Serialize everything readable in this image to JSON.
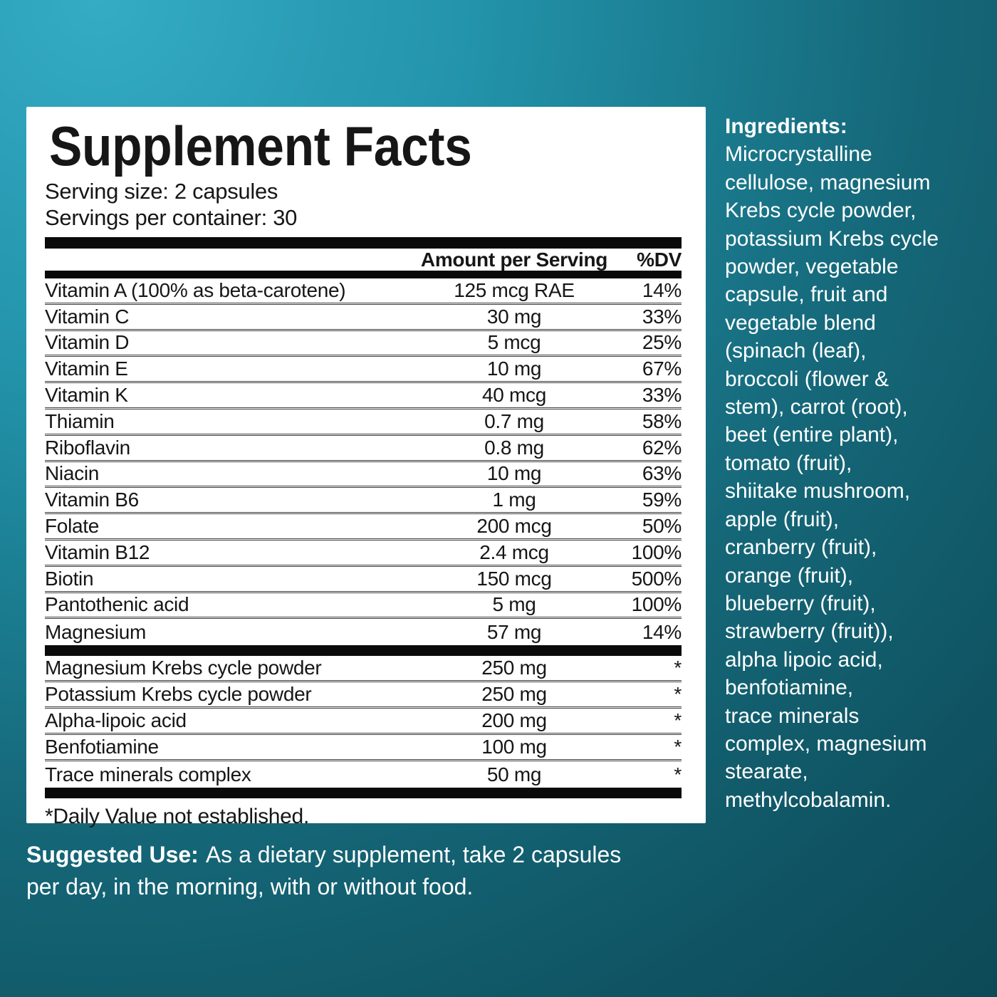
{
  "background": {
    "color_bright": "#35abc4",
    "color_dark": "#0d4956",
    "panel_color": "#ffffff",
    "text_on_teal": "#ffffff",
    "text_on_panel": "#161616"
  },
  "panel": {
    "title": "Supplement Facts",
    "serving_size": "Serving size: 2 capsules",
    "servings_per_container": "Servings per container: 30",
    "columns": {
      "amount": "Amount per Serving",
      "dv": "%DV"
    },
    "rows_primary": [
      {
        "name": "Vitamin A (100% as beta-carotene)",
        "amount": "125 mcg RAE",
        "dv": "14%"
      },
      {
        "name": "Vitamin C",
        "amount": "30 mg",
        "dv": "33%"
      },
      {
        "name": "Vitamin D",
        "amount": "5 mcg",
        "dv": "25%"
      },
      {
        "name": "Vitamin E",
        "amount": "10 mg",
        "dv": "67%"
      },
      {
        "name": "Vitamin K",
        "amount": "40 mcg",
        "dv": "33%"
      },
      {
        "name": "Thiamin",
        "amount": "0.7 mg",
        "dv": "58%"
      },
      {
        "name": "Riboflavin",
        "amount": "0.8 mg",
        "dv": "62%"
      },
      {
        "name": "Niacin",
        "amount": "10 mg",
        "dv": "63%"
      },
      {
        "name": "Vitamin B6",
        "amount": "1 mg",
        "dv": "59%"
      },
      {
        "name": "Folate",
        "amount": "200 mcg",
        "dv": "50%"
      },
      {
        "name": "Vitamin B12",
        "amount": "2.4 mcg",
        "dv": "100%"
      },
      {
        "name": "Biotin",
        "amount": "150 mcg",
        "dv": "500%"
      },
      {
        "name": "Pantothenic acid",
        "amount": "5 mg",
        "dv": "100%"
      },
      {
        "name": "Magnesium",
        "amount": "57 mg",
        "dv": "14%"
      }
    ],
    "rows_secondary": [
      {
        "name": "Magnesium Krebs cycle powder",
        "amount": "250 mg",
        "dv": "*"
      },
      {
        "name": "Potassium Krebs cycle powder",
        "amount": "250 mg",
        "dv": "*"
      },
      {
        "name": "Alpha-lipoic acid",
        "amount": "200 mg",
        "dv": "*"
      },
      {
        "name": "Benfotiamine",
        "amount": "100 mg",
        "dv": "*"
      },
      {
        "name": "Trace minerals complex",
        "amount": "50 mg",
        "dv": "*"
      }
    ],
    "footnote": "*Daily Value not established."
  },
  "ingredients": {
    "heading": "Ingredients:",
    "body": "Microcrystalline\ncellulose, magnesium\nKrebs cycle powder,\npotassium Krebs cycle\npowder, vegetable\ncapsule, fruit and\nvegetable blend\n(spinach (leaf),\nbroccoli (flower &\nstem), carrot (root),\nbeet (entire plant),\ntomato (fruit),\nshiitake mushroom,\napple (fruit),\ncranberry (fruit),\norange (fruit),\nblueberry (fruit),\nstrawberry (fruit)),\nalpha lipoic acid,\nbenfotiamine,\ntrace minerals\ncomplex, magnesium\nstearate,\nmethylcobalamin."
  },
  "suggested_use": {
    "label": "Suggested Use:",
    "text": "As a dietary supplement, take 2 capsules\nper day, in the morning, with or without food."
  }
}
